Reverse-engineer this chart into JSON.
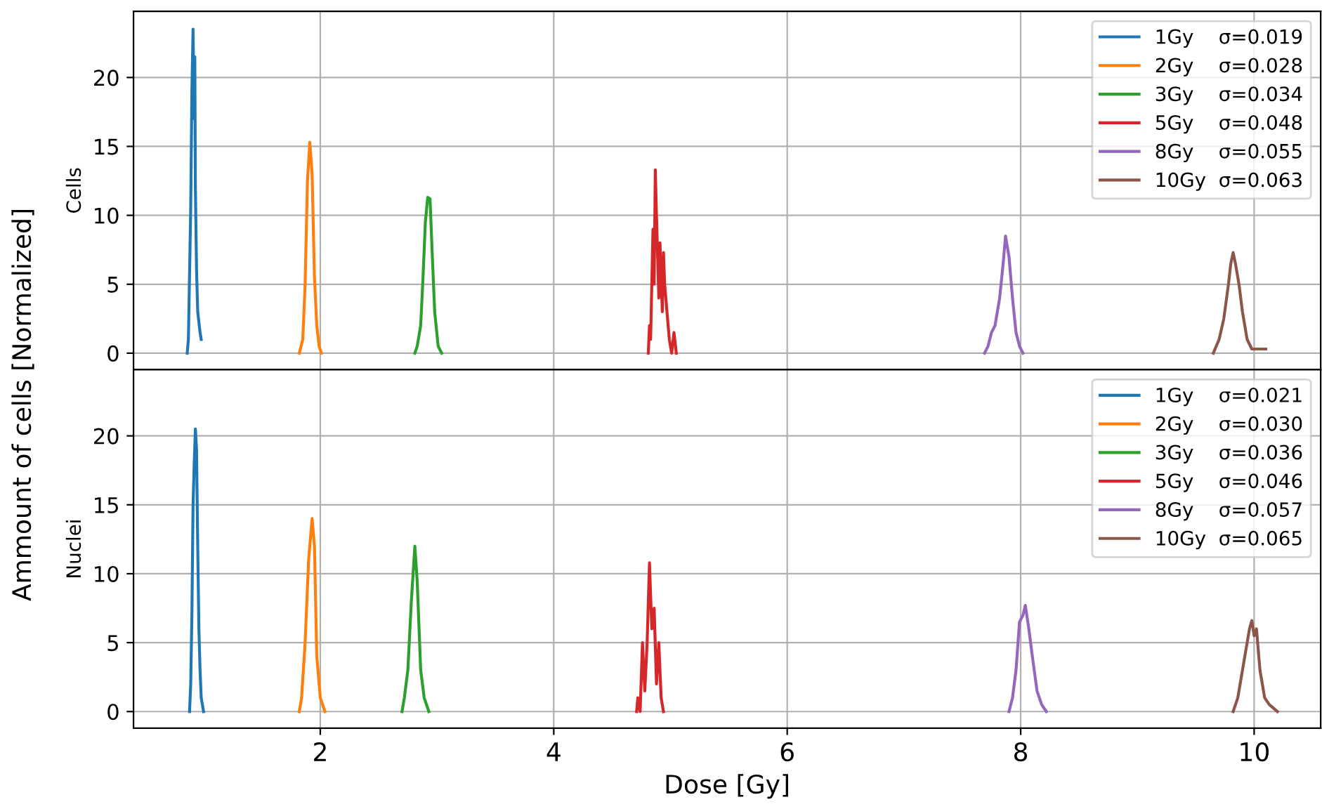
{
  "chart_data": [
    {
      "type": "line",
      "ylabel": "Cells",
      "annotations": [
        "Ammount of cells [Normalized]"
      ],
      "xlim": [
        0.4,
        10.57
      ],
      "ylim": [
        -1.2,
        24.8
      ],
      "xticks": [
        2,
        4,
        6,
        8,
        10
      ],
      "yticks": [
        0,
        5,
        10,
        15,
        20
      ],
      "tick_labels": "y",
      "grid": true,
      "legend": "top right",
      "series": [
        {
          "name": "1Gy    σ=0.019",
          "color": "#1f77b4",
          "x": [
            0.86,
            0.87,
            0.89,
            0.9,
            0.91,
            0.92,
            0.925,
            0.93,
            0.94,
            0.95,
            0.97,
            0.98
          ],
          "values": [
            0,
            1,
            10.5,
            19,
            23.5,
            17,
            21.5,
            12,
            6,
            3,
            1.5,
            1
          ]
        },
        {
          "name": "2Gy    σ=0.028",
          "color": "#ff7f0e",
          "x": [
            1.82,
            1.85,
            1.87,
            1.89,
            1.91,
            1.93,
            1.95,
            1.97,
            1.99,
            2.01
          ],
          "values": [
            0,
            1,
            5,
            12.5,
            15.3,
            13,
            5.5,
            2,
            0.5,
            0
          ]
        },
        {
          "name": "3Gy    σ=0.034",
          "color": "#2ca02c",
          "x": [
            2.81,
            2.83,
            2.86,
            2.88,
            2.9,
            2.92,
            2.94,
            2.96,
            2.98,
            3.01,
            3.04
          ],
          "values": [
            0,
            0.5,
            2,
            5.5,
            9.5,
            11.3,
            11.2,
            7,
            3,
            0.5,
            0
          ]
        },
        {
          "name": "5Gy    σ=0.048",
          "color": "#d62728",
          "x": [
            4.81,
            4.82,
            4.83,
            4.85,
            4.86,
            4.87,
            4.88,
            4.9,
            4.91,
            4.93,
            4.94,
            4.95,
            4.97,
            4.99,
            5.01,
            5.03,
            5.05
          ],
          "values": [
            0,
            2,
            1,
            9,
            5,
            13.3,
            10,
            4,
            8,
            3,
            7.3,
            5,
            3,
            1,
            0,
            1.5,
            0
          ]
        },
        {
          "name": "8Gy    σ=0.055",
          "color": "#9467bd",
          "x": [
            7.69,
            7.72,
            7.75,
            7.78,
            7.82,
            7.85,
            7.87,
            7.9,
            7.93,
            7.96,
            7.99,
            8.02
          ],
          "values": [
            0,
            0.5,
            1.5,
            2,
            4,
            6.5,
            8.5,
            7,
            4,
            1.5,
            0.5,
            0
          ]
        },
        {
          "name": "10Gy  σ=0.063",
          "color": "#8c564b",
          "x": [
            9.65,
            9.7,
            9.74,
            9.78,
            9.8,
            9.82,
            9.84,
            9.87,
            9.9,
            9.94,
            9.98,
            10.02,
            10.1
          ],
          "values": [
            0,
            1,
            2.5,
            5,
            6.5,
            7.3,
            6.5,
            5,
            3,
            1,
            0.3,
            0.3,
            0.3
          ]
        }
      ]
    },
    {
      "type": "line",
      "ylabel": "Nuclei",
      "xlabel": "Dose [Gy]",
      "xlim": [
        0.4,
        10.57
      ],
      "ylim": [
        -1.2,
        24.8
      ],
      "xticks": [
        2,
        4,
        6,
        8,
        10
      ],
      "yticks": [
        0,
        5,
        10,
        15,
        20
      ],
      "grid": true,
      "legend": "top right",
      "series": [
        {
          "name": "1Gy    σ=0.021",
          "color": "#1f77b4",
          "x": [
            0.88,
            0.89,
            0.9,
            0.91,
            0.92,
            0.93,
            0.94,
            0.95,
            0.96,
            0.97,
            0.98,
            1.0
          ],
          "values": [
            0,
            2,
            7,
            15,
            18,
            20.5,
            19,
            12,
            6,
            3,
            1,
            0
          ]
        },
        {
          "name": "2Gy    σ=0.030",
          "color": "#ff7f0e",
          "x": [
            1.82,
            1.84,
            1.87,
            1.9,
            1.93,
            1.95,
            1.97,
            2.0,
            2.04
          ],
          "values": [
            0,
            1,
            5,
            11,
            14,
            12,
            4,
            1,
            0
          ]
        },
        {
          "name": "3Gy    σ=0.036",
          "color": "#2ca02c",
          "x": [
            2.7,
            2.72,
            2.75,
            2.78,
            2.81,
            2.83,
            2.86,
            2.89,
            2.93
          ],
          "values": [
            0,
            1,
            3,
            8,
            12,
            9.5,
            3,
            1,
            0
          ]
        },
        {
          "name": "5Gy    σ=0.046",
          "color": "#d62728",
          "x": [
            4.71,
            4.72,
            4.74,
            4.76,
            4.78,
            4.8,
            4.82,
            4.84,
            4.86,
            4.88,
            4.9,
            4.92,
            4.94
          ],
          "values": [
            0,
            1,
            0,
            5,
            1.5,
            5,
            10.8,
            6,
            7.5,
            2,
            5,
            1,
            0
          ]
        },
        {
          "name": "8Gy    σ=0.057",
          "color": "#9467bd",
          "x": [
            7.9,
            7.93,
            7.96,
            7.99,
            8.02,
            8.04,
            8.07,
            8.1,
            8.14,
            8.18,
            8.22
          ],
          "values": [
            0,
            1,
            3,
            6.5,
            7,
            7.7,
            6,
            4,
            1.5,
            0.5,
            0
          ]
        },
        {
          "name": "10Gy  σ=0.065",
          "color": "#8c564b",
          "x": [
            9.82,
            9.86,
            9.9,
            9.93,
            9.96,
            9.98,
            10.0,
            10.02,
            10.05,
            10.09,
            10.13,
            10.2
          ],
          "values": [
            0,
            1,
            3,
            4.5,
            6,
            6.6,
            5.5,
            6,
            3,
            1,
            0.5,
            0
          ]
        }
      ]
    }
  ]
}
